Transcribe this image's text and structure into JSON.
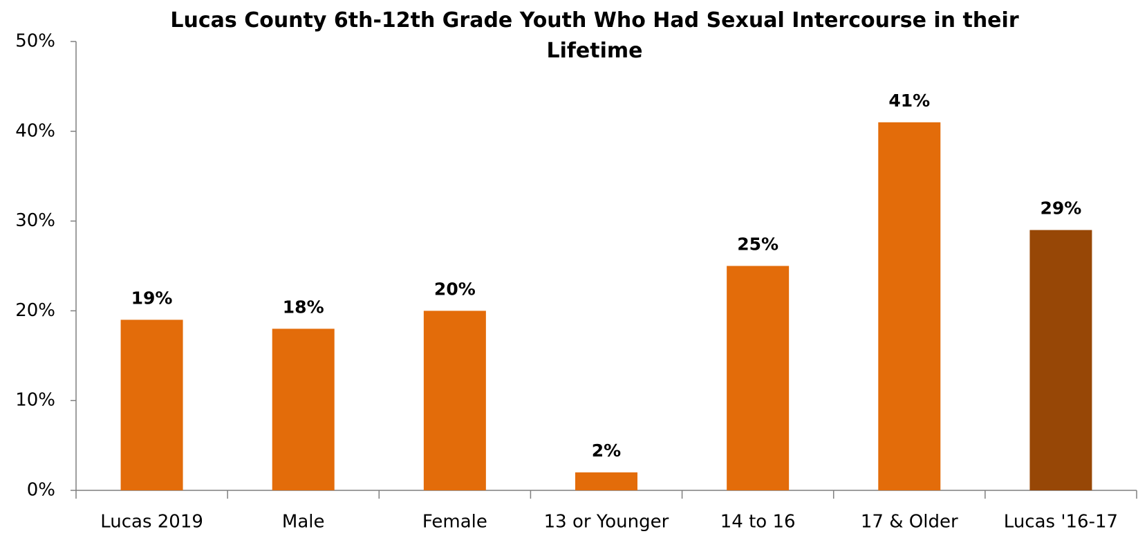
{
  "chart_data": {
    "type": "bar",
    "title": "Lucas County 6th-12th Grade Youth Who Had Sexual Intercourse in their Lifetime",
    "categories": [
      "Lucas 2019",
      "Male",
      "Female",
      "13 or Younger",
      "14 to 16",
      "17 & Older",
      "Lucas '16-17"
    ],
    "values": [
      19,
      18,
      20,
      2,
      25,
      41,
      29
    ],
    "value_labels": [
      "19%",
      "18%",
      "20%",
      "2%",
      "25%",
      "41%",
      "29%"
    ],
    "colors": [
      "#e36c0a",
      "#e36c0a",
      "#e36c0a",
      "#e36c0a",
      "#e36c0a",
      "#e36c0a",
      "#974706"
    ],
    "ylim": [
      0,
      50
    ],
    "yticks": [
      {
        "value": 0,
        "label": "0%"
      },
      {
        "value": 10,
        "label": "10%"
      },
      {
        "value": 20,
        "label": "20%"
      },
      {
        "value": 30,
        "label": "30%"
      },
      {
        "value": 40,
        "label": "40%"
      },
      {
        "value": 50,
        "label": "50%"
      }
    ],
    "grid": false
  }
}
